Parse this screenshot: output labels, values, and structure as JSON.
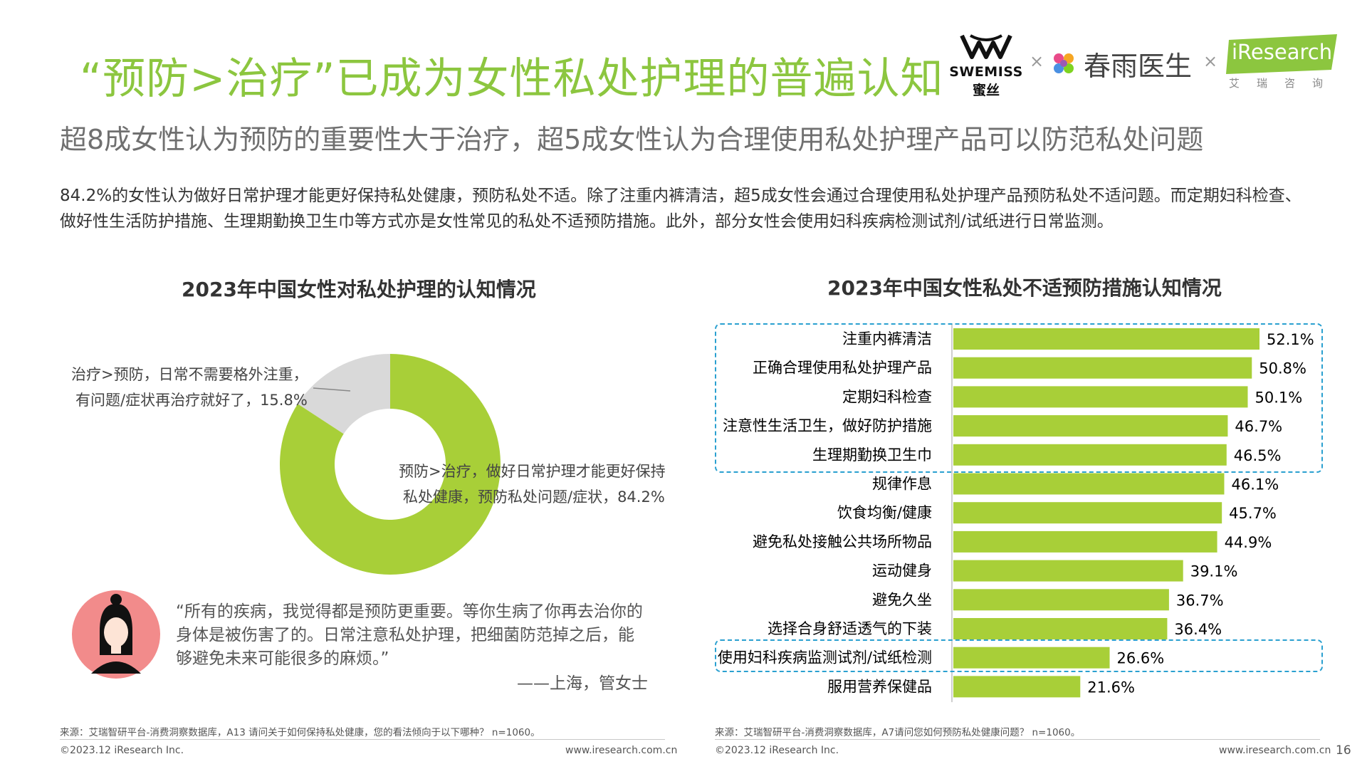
{
  "header": {
    "title": "“预防>治疗”已成为女性私处护理的普遍认知",
    "subtitle": "超8成女性认为预防的重要性大于治疗，超5成女性认为合理使用私处护理产品可以防范私处问题",
    "paragraph": "84.2%的女性认为做好日常护理才能更好保持私处健康，预防私处不适。除了注重内裤清洁，超5成女性会通过合理使用私处护理产品预防私处不适问题。而定期妇科检查、做好性生活防护措施、生理期勤换卫生巾等方式亦是女性常见的私处不适预防措施。此外，部分女性会使用妇科疾病检测试剂/试纸进行日常监测。"
  },
  "logos": {
    "swemiss": "SWEMISS",
    "swemiss_cn": "蜜丝",
    "x": "×",
    "chunyu": "春雨医生",
    "iresearch": "iResearch",
    "iresearch_cn": "艾瑞咨询"
  },
  "colors": {
    "accent_green": "#a8cf38",
    "grey_slice": "#d9d9d9",
    "title_green": "#8cc63f",
    "highlight_blue": "#2aa0d0"
  },
  "chart_data": [
    {
      "type": "pie",
      "title": "2023年中国女性对私处护理的认知情况",
      "slices": [
        {
          "label_line1": "治疗>预防，日常不需要格外注重，",
          "label_line2": "有问题/症状再治疗就好了，15.8%",
          "value": 15.8,
          "color": "#d9d9d9"
        },
        {
          "label_line1": "预防>治疗，做好日常护理才能更好保持",
          "label_line2": "私处健康，预防私处问题/症状，84.2%",
          "value": 84.2,
          "color": "#a8cf38"
        }
      ]
    },
    {
      "type": "bar",
      "orientation": "horizontal",
      "title": "2023年中国女性私处不适预防措施认知情况",
      "unit": "%",
      "xlim": [
        0,
        60
      ],
      "categories": [
        "注重内裤清洁",
        "正确合理使用私处护理产品",
        "定期妇科检查",
        "注意性生活卫生，做好防护措施",
        "生理期勤换卫生巾",
        "规律作息",
        "饮食均衡/健康",
        "避免私处接触公共场所物品",
        "运动健身",
        "避免久坐",
        "选择合身舒适透气的下装",
        "使用妇科疾病监测试剂/试纸检测",
        "服用营养保健品"
      ],
      "values": [
        52.1,
        50.8,
        50.1,
        46.7,
        46.5,
        46.1,
        45.7,
        44.9,
        39.1,
        36.7,
        36.4,
        26.6,
        21.6
      ],
      "value_labels": [
        "52.1%",
        "50.8%",
        "50.1%",
        "46.7%",
        "46.5%",
        "46.1%",
        "45.7%",
        "44.9%",
        "39.1%",
        "36.7%",
        "36.4%",
        "26.6%",
        "21.6%"
      ],
      "highlighted_groups": [
        [
          0,
          4
        ],
        [
          11,
          11
        ]
      ]
    }
  ],
  "quote": {
    "text": "“所有的疾病，我觉得都是预防更重要。等你生病了你再去治你的身体是被伤害了的。日常注意私处护理，把细菌防范掉之后，能够避免未来可能很多的麻烦。”",
    "author": "——上海，管女士"
  },
  "footer": {
    "source_left": "来源：艾瑞智研平台-消费洞察数据库，A13 请问关于如何保持私处健康，您的看法倾向于以下哪种？ n=1060。",
    "source_right": "来源：艾瑞智研平台-消费洞察数据库，A7请问您如何预防私处健康问题？ n=1060。",
    "copyright": "©2023.12 iResearch Inc.",
    "url": "www.iresearch.com.cn",
    "page": "16"
  }
}
